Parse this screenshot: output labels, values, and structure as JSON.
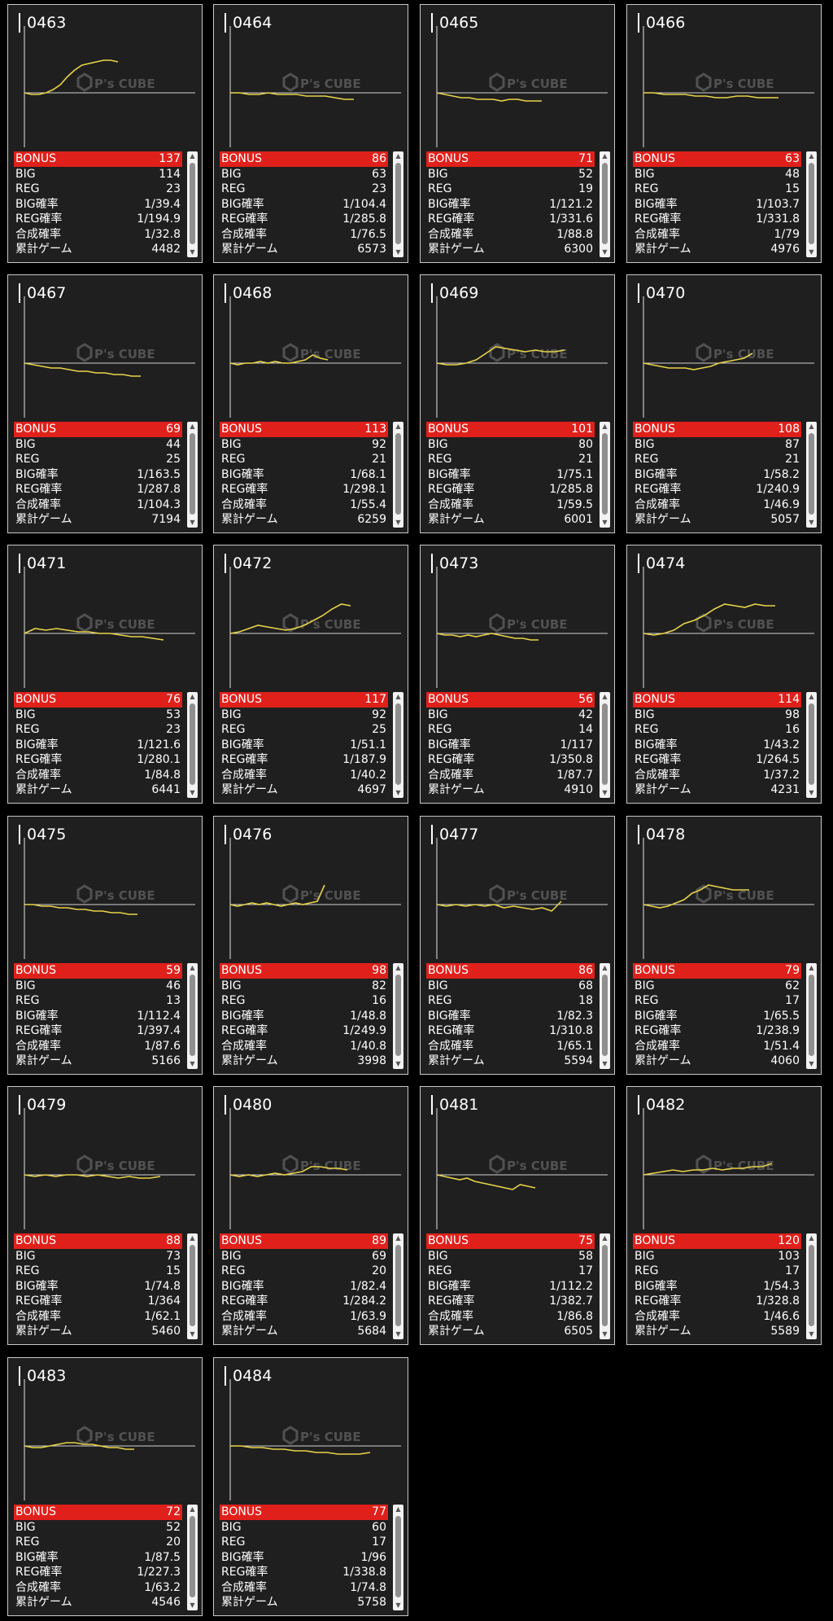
{
  "watermark": {
    "brand": "P's CUBE"
  },
  "stat_labels": {
    "bonus": "BONUS",
    "big": "BIG",
    "reg": "REG",
    "big_rate": "BIG確率",
    "reg_rate": "REG確率",
    "total_rate": "合成確率",
    "games": "累計ゲーム"
  },
  "icons": {
    "scroll_up": "triangle-up-icon",
    "scroll_down": "triangle-down-icon"
  },
  "colors": {
    "bonus_bar": "#e0201b",
    "graph_line": "#e8d44a",
    "panel_bg": "#1f1f1f"
  },
  "machines": [
    {
      "id": "0463",
      "bonus": "137",
      "big": "114",
      "reg": "23",
      "big_rate": "1/39.4",
      "reg_rate": "1/194.9",
      "total_rate": "1/32.8",
      "games": "4482",
      "trend": [
        0,
        -1,
        -1,
        0,
        2,
        5,
        10,
        14,
        17,
        18,
        19,
        20,
        20,
        19
      ]
    },
    {
      "id": "0464",
      "bonus": "86",
      "big": "63",
      "reg": "23",
      "big_rate": "1/104.4",
      "reg_rate": "1/285.8",
      "total_rate": "1/76.5",
      "games": "6573",
      "trend": [
        0,
        0,
        -1,
        -1,
        0,
        -1,
        -1,
        -1,
        -2,
        -2,
        -2,
        -3,
        -4,
        -4
      ]
    },
    {
      "id": "0465",
      "bonus": "71",
      "big": "52",
      "reg": "19",
      "big_rate": "1/121.2",
      "reg_rate": "1/331.6",
      "total_rate": "1/88.8",
      "games": "6300",
      "trend": [
        0,
        -1,
        -2,
        -3,
        -3,
        -4,
        -4,
        -4,
        -5,
        -4,
        -4,
        -5,
        -5,
        -5
      ]
    },
    {
      "id": "0466",
      "bonus": "63",
      "big": "48",
      "reg": "15",
      "big_rate": "1/103.7",
      "reg_rate": "1/331.8",
      "total_rate": "1/79",
      "games": "4976",
      "trend": [
        0,
        0,
        -1,
        -1,
        -1,
        -2,
        -2,
        -3,
        -3,
        -2,
        -2,
        -3,
        -3,
        -3
      ]
    },
    {
      "id": "0467",
      "bonus": "69",
      "big": "44",
      "reg": "25",
      "big_rate": "1/163.5",
      "reg_rate": "1/287.8",
      "total_rate": "1/104.3",
      "games": "7194",
      "trend": [
        0,
        -1,
        -2,
        -3,
        -3,
        -4,
        -5,
        -5,
        -6,
        -6,
        -7,
        -7,
        -8,
        -8
      ]
    },
    {
      "id": "0468",
      "bonus": "113",
      "big": "92",
      "reg": "21",
      "big_rate": "1/68.1",
      "reg_rate": "1/298.1",
      "total_rate": "1/55.4",
      "games": "6259",
      "trend": [
        0,
        -1,
        0,
        0,
        1,
        0,
        1,
        0,
        0,
        1,
        2,
        5,
        3,
        2
      ]
    },
    {
      "id": "0469",
      "bonus": "101",
      "big": "80",
      "reg": "21",
      "big_rate": "1/75.1",
      "reg_rate": "1/285.8",
      "total_rate": "1/59.5",
      "games": "6001",
      "trend": [
        0,
        -1,
        -1,
        0,
        2,
        6,
        10,
        9,
        8,
        7,
        8,
        7,
        7,
        8
      ]
    },
    {
      "id": "0470",
      "bonus": "108",
      "big": "87",
      "reg": "21",
      "big_rate": "1/58.2",
      "reg_rate": "1/240.9",
      "total_rate": "1/46.9",
      "games": "5057",
      "trend": [
        0,
        -1,
        -2,
        -3,
        -3,
        -3,
        -4,
        -3,
        -2,
        0,
        1,
        2,
        3,
        6
      ]
    },
    {
      "id": "0471",
      "bonus": "76",
      "big": "53",
      "reg": "23",
      "big_rate": "1/121.6",
      "reg_rate": "1/280.1",
      "total_rate": "1/84.8",
      "games": "6441",
      "trend": [
        0,
        3,
        2,
        3,
        2,
        1,
        1,
        0,
        0,
        -1,
        -2,
        -2,
        -3,
        -4
      ]
    },
    {
      "id": "0472",
      "bonus": "117",
      "big": "92",
      "reg": "25",
      "big_rate": "1/51.1",
      "reg_rate": "1/187.9",
      "total_rate": "1/40.2",
      "games": "4697",
      "trend": [
        0,
        1,
        3,
        5,
        4,
        3,
        2,
        3,
        5,
        8,
        11,
        15,
        18,
        17
      ]
    },
    {
      "id": "0473",
      "bonus": "56",
      "big": "42",
      "reg": "14",
      "big_rate": "1/117",
      "reg_rate": "1/350.8",
      "total_rate": "1/87.7",
      "games": "4910",
      "trend": [
        0,
        -1,
        -1,
        -2,
        -1,
        -2,
        -1,
        0,
        -1,
        -2,
        -3,
        -3,
        -4,
        -4
      ]
    },
    {
      "id": "0474",
      "bonus": "114",
      "big": "98",
      "reg": "16",
      "big_rate": "1/43.2",
      "reg_rate": "1/264.5",
      "total_rate": "1/37.2",
      "games": "4231",
      "trend": [
        0,
        -1,
        0,
        2,
        6,
        8,
        11,
        15,
        18,
        17,
        16,
        18,
        17,
        17
      ]
    },
    {
      "id": "0475",
      "bonus": "59",
      "big": "46",
      "reg": "13",
      "big_rate": "1/112.4",
      "reg_rate": "1/397.4",
      "total_rate": "1/87.6",
      "games": "5166",
      "trend": [
        0,
        0,
        -1,
        -1,
        -2,
        -2,
        -3,
        -3,
        -4,
        -4,
        -5,
        -5,
        -6,
        -6
      ]
    },
    {
      "id": "0476",
      "bonus": "98",
      "big": "82",
      "reg": "16",
      "big_rate": "1/48.8",
      "reg_rate": "1/249.9",
      "total_rate": "1/40.8",
      "games": "3998",
      "trend": [
        0,
        -1,
        0,
        1,
        0,
        1,
        0,
        -1,
        0,
        1,
        0,
        1,
        2,
        12
      ]
    },
    {
      "id": "0477",
      "bonus": "86",
      "big": "68",
      "reg": "18",
      "big_rate": "1/82.3",
      "reg_rate": "1/310.8",
      "total_rate": "1/65.1",
      "games": "5594",
      "trend": [
        0,
        -1,
        0,
        -1,
        0,
        -1,
        0,
        -2,
        -1,
        -2,
        -3,
        -2,
        -4,
        2
      ]
    },
    {
      "id": "0478",
      "bonus": "79",
      "big": "62",
      "reg": "17",
      "big_rate": "1/65.5",
      "reg_rate": "1/238.9",
      "total_rate": "1/51.4",
      "games": "4060",
      "trend": [
        0,
        -1,
        -2,
        -1,
        1,
        3,
        7,
        9,
        12,
        11,
        10,
        9,
        9,
        9
      ]
    },
    {
      "id": "0479",
      "bonus": "88",
      "big": "73",
      "reg": "15",
      "big_rate": "1/74.8",
      "reg_rate": "1/364",
      "total_rate": "1/62.1",
      "games": "5460",
      "trend": [
        0,
        -1,
        0,
        -1,
        0,
        0,
        -1,
        0,
        -1,
        -2,
        -1,
        -2,
        -2,
        -1
      ]
    },
    {
      "id": "0480",
      "bonus": "89",
      "big": "69",
      "reg": "20",
      "big_rate": "1/82.4",
      "reg_rate": "1/284.2",
      "total_rate": "1/63.9",
      "games": "5684",
      "trend": [
        0,
        -1,
        0,
        -1,
        0,
        1,
        0,
        1,
        2,
        5,
        5,
        4,
        4,
        3
      ]
    },
    {
      "id": "0481",
      "bonus": "75",
      "big": "58",
      "reg": "17",
      "big_rate": "1/112.2",
      "reg_rate": "1/382.7",
      "total_rate": "1/86.8",
      "games": "6505",
      "trend": [
        0,
        -1,
        -2,
        -3,
        -2,
        -4,
        -5,
        -6,
        -7,
        -8,
        -9,
        -6,
        -7,
        -8
      ]
    },
    {
      "id": "0482",
      "bonus": "120",
      "big": "103",
      "reg": "17",
      "big_rate": "1/54.3",
      "reg_rate": "1/328.8",
      "total_rate": "1/46.6",
      "games": "5589",
      "trend": [
        0,
        1,
        2,
        3,
        2,
        3,
        3,
        4,
        3,
        4,
        4,
        5,
        5,
        7
      ]
    },
    {
      "id": "0483",
      "bonus": "72",
      "big": "52",
      "reg": "20",
      "big_rate": "1/87.5",
      "reg_rate": "1/227.3",
      "total_rate": "1/63.2",
      "games": "4546",
      "trend": [
        0,
        -1,
        -1,
        0,
        1,
        2,
        2,
        1,
        1,
        0,
        -1,
        -1,
        -2,
        -2
      ]
    },
    {
      "id": "0484",
      "bonus": "77",
      "big": "60",
      "reg": "17",
      "big_rate": "1/96",
      "reg_rate": "1/338.8",
      "total_rate": "1/74.8",
      "games": "5758",
      "trend": [
        0,
        0,
        -1,
        -1,
        -2,
        -2,
        -3,
        -3,
        -4,
        -4,
        -5,
        -5,
        -5,
        -4
      ]
    }
  ]
}
